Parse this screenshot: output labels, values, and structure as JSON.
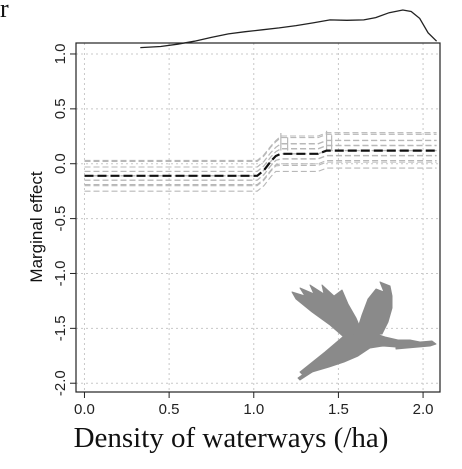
{
  "chart_data": {
    "type": "line",
    "ylabel": "Marginal effect",
    "xlabel": "Density of waterways (/ha)",
    "xlim": [
      -0.05,
      2.1
    ],
    "ylim": [
      -2.08,
      1.1
    ],
    "x_ticks": [
      "0.0",
      "0.5",
      "1.0",
      "1.5",
      "2.0"
    ],
    "x_tick_values": [
      0.0,
      0.5,
      1.0,
      1.5,
      2.0
    ],
    "y_ticks": [
      "1.0",
      "0.5",
      "0.0",
      "-0.5",
      "-1.0",
      "-1.5",
      "-2.0"
    ],
    "y_tick_values": [
      1.0,
      0.5,
      0.0,
      -0.5,
      -1.0,
      -1.5,
      -2.0
    ],
    "grid": true,
    "series": [
      {
        "style": "dashed-black",
        "x": [
          0.0,
          1.02,
          1.06,
          1.1,
          1.13,
          1.16,
          1.22,
          1.3,
          1.38,
          1.43,
          1.5,
          1.7,
          1.9,
          2.08
        ],
        "y": [
          -0.11,
          -0.11,
          -0.06,
          0.02,
          0.07,
          0.09,
          0.09,
          0.09,
          0.09,
          0.12,
          0.12,
          0.12,
          0.12,
          0.12
        ]
      }
    ],
    "ensemble": {
      "color": "#b8b8b8",
      "offsets": [
        -0.13,
        -0.1,
        -0.07,
        -0.05,
        -0.03,
        -0.01,
        0.01,
        0.03,
        0.05,
        0.07,
        0.09,
        0.12,
        0.15
      ]
    },
    "density": {
      "x": [
        0.33,
        0.45,
        0.55,
        0.65,
        0.75,
        0.85,
        0.95,
        1.05,
        1.15,
        1.25,
        1.35,
        1.45,
        1.55,
        1.65,
        1.72,
        1.8,
        1.88,
        1.93,
        1.98,
        2.03,
        2.08
      ],
      "y": [
        0.01,
        0.04,
        0.1,
        0.18,
        0.28,
        0.37,
        0.43,
        0.48,
        0.53,
        0.59,
        0.66,
        0.74,
        0.73,
        0.74,
        0.8,
        0.93,
        1.0,
        0.96,
        0.78,
        0.4,
        0.18
      ]
    }
  }
}
